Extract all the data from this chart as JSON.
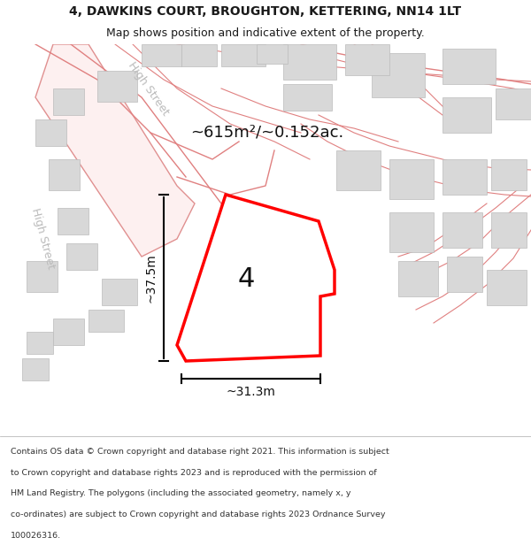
{
  "title_line1": "4, DAWKINS COURT, BROUGHTON, KETTERING, NN14 1LT",
  "title_line2": "Map shows position and indicative extent of the property.",
  "area_label": "~615m²/~0.152ac.",
  "plot_number": "4",
  "dim_vertical": "~37.5m",
  "dim_horizontal": "~31.3m",
  "street_label_1": "High Street",
  "street_label_2": "High Street",
  "footer_text": "Contains OS data © Crown copyright and database right 2021. This information is subject to Crown copyright and database rights 2023 and is reproduced with the permission of HM Land Registry. The polygons (including the associated geometry, namely x, y co-ordinates) are subject to Crown copyright and database rights 2023 Ordnance Survey 100026316.",
  "bg_color": "#ffffff",
  "map_bg": "#f5f5f5",
  "road_color": "#f0a0a0",
  "building_color": "#d8d8d8",
  "highlight_color": "#ff0000",
  "text_color": "#1a1a1a",
  "street_color": "#cccccc"
}
